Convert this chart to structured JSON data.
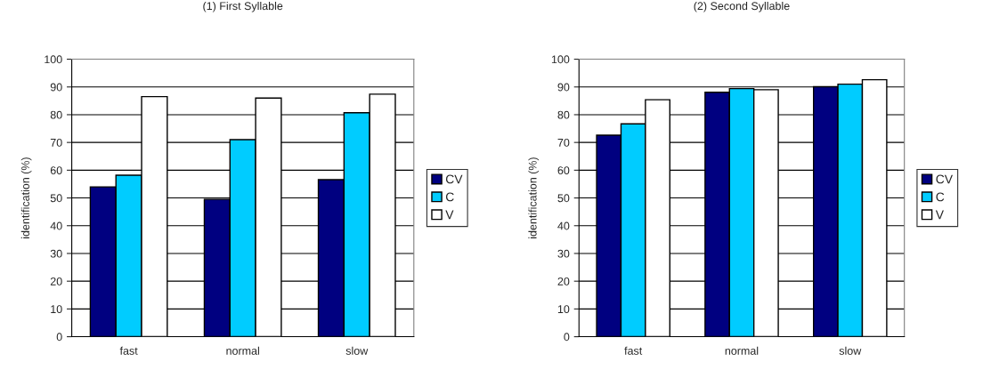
{
  "chart_data": [
    {
      "type": "bar",
      "title": "(1) First Syllable",
      "ylabel": "identification (%)",
      "categories": [
        "fast",
        "normal",
        "slow"
      ],
      "series": [
        {
          "name": "CV",
          "color": "#000080",
          "values": [
            54,
            49.5,
            56.6
          ]
        },
        {
          "name": "C",
          "color": "#00ccff",
          "values": [
            58.2,
            71,
            80.7
          ]
        },
        {
          "name": "V",
          "color": "#ffffff",
          "values": [
            86.5,
            86,
            87.4
          ]
        }
      ],
      "ylim": [
        0,
        100
      ],
      "yticks": [
        0,
        10,
        20,
        30,
        40,
        50,
        60,
        70,
        80,
        90,
        100
      ],
      "grid": "y",
      "legend": "right"
    },
    {
      "type": "bar",
      "title": "(2) Second Syllable",
      "ylabel": "identification (%)",
      "categories": [
        "fast",
        "normal",
        "slow"
      ],
      "series": [
        {
          "name": "CV",
          "color": "#000080",
          "values": [
            72.6,
            88.1,
            90.1
          ]
        },
        {
          "name": "C",
          "color": "#00ccff",
          "values": [
            76.7,
            89.4,
            91
          ]
        },
        {
          "name": "V",
          "color": "#ffffff",
          "values": [
            85.4,
            89,
            92.6
          ]
        }
      ],
      "ylim": [
        0,
        100
      ],
      "yticks": [
        0,
        10,
        20,
        30,
        40,
        50,
        60,
        70,
        80,
        90,
        100
      ],
      "grid": "y",
      "legend": "right"
    }
  ]
}
